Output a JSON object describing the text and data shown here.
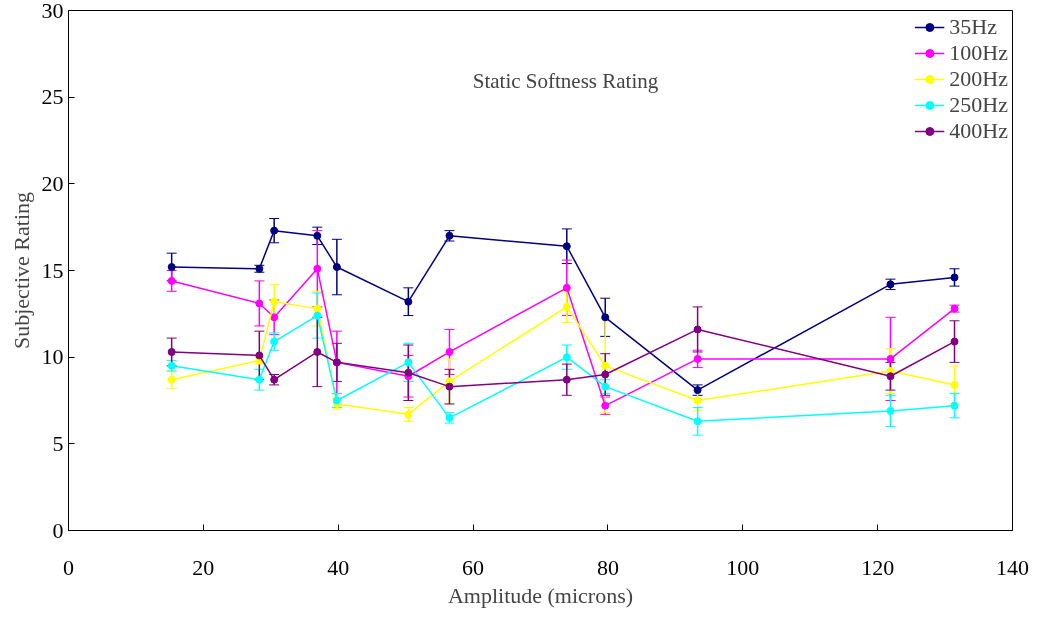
{
  "chart_data": {
    "type": "line",
    "title": "Static Softness Rating",
    "xlabel": "Amplitude (microns)",
    "ylabel": "Subjective Rating",
    "x": [
      15.3,
      28.3,
      30.5,
      36.9,
      39.8,
      50.4,
      56.5,
      73.9,
      79.6,
      93.3,
      121.9,
      131.4
    ],
    "xlim": [
      0,
      140
    ],
    "xticks": [
      0,
      20,
      40,
      60,
      80,
      100,
      120,
      140
    ],
    "ylim": [
      0,
      30
    ],
    "yticks": [
      0,
      5,
      10,
      15,
      20,
      25,
      30
    ],
    "grid": false,
    "legend": "top right",
    "marker": "circle",
    "line_style": "solid",
    "series": [
      {
        "name": "35Hz",
        "color": "#000080",
        "values": [
          15.2,
          15.1,
          17.3,
          17.0,
          15.2,
          13.2,
          17.0,
          16.4,
          12.3,
          8.1,
          14.2,
          14.6
        ],
        "errors": [
          0.8,
          0.2,
          0.7,
          0.5,
          1.6,
          0.8,
          0.3,
          1.0,
          1.1,
          0.3,
          0.3,
          0.5
        ]
      },
      {
        "name": "100Hz",
        "color": "#ff00ff",
        "values": [
          14.4,
          13.1,
          12.3,
          15.1,
          9.7,
          8.9,
          10.3,
          14.0,
          7.2,
          9.9,
          9.9,
          12.8
        ],
        "errors": [
          0.6,
          1.3,
          1.0,
          2.2,
          1.8,
          1.2,
          1.3,
          1.6,
          0.5,
          0.5,
          2.4,
          0.2
        ]
      },
      {
        "name": "200Hz",
        "color": "#ffff00",
        "values": [
          8.7,
          9.8,
          13.2,
          12.8,
          7.3,
          6.7,
          8.6,
          12.9,
          9.5,
          7.5,
          9.2,
          8.4
        ],
        "errors": [
          0.5,
          0.2,
          1.0,
          1.0,
          0.3,
          0.4,
          1.3,
          0.9,
          2.7,
          0.6,
          1.3,
          1.1
        ]
      },
      {
        "name": "250Hz",
        "color": "#00ffff",
        "values": [
          9.5,
          8.7,
          10.9,
          12.4,
          7.5,
          9.7,
          6.5,
          10.0,
          8.3,
          6.3,
          6.9,
          7.2
        ],
        "errors": [
          0.3,
          0.6,
          0.5,
          1.3,
          0.4,
          1.1,
          0.3,
          0.7,
          0.4,
          0.8,
          0.9,
          0.7
        ]
      },
      {
        "name": "400Hz",
        "color": "#800080",
        "values": [
          10.3,
          10.1,
          8.7,
          10.3,
          9.7,
          9.1,
          8.3,
          8.7,
          9.0,
          11.6,
          8.9,
          10.9
        ],
        "errors": [
          0.8,
          1.4,
          0.3,
          2.0,
          1.1,
          1.6,
          1.0,
          0.9,
          1.2,
          1.3,
          0.8,
          1.2
        ]
      }
    ]
  }
}
